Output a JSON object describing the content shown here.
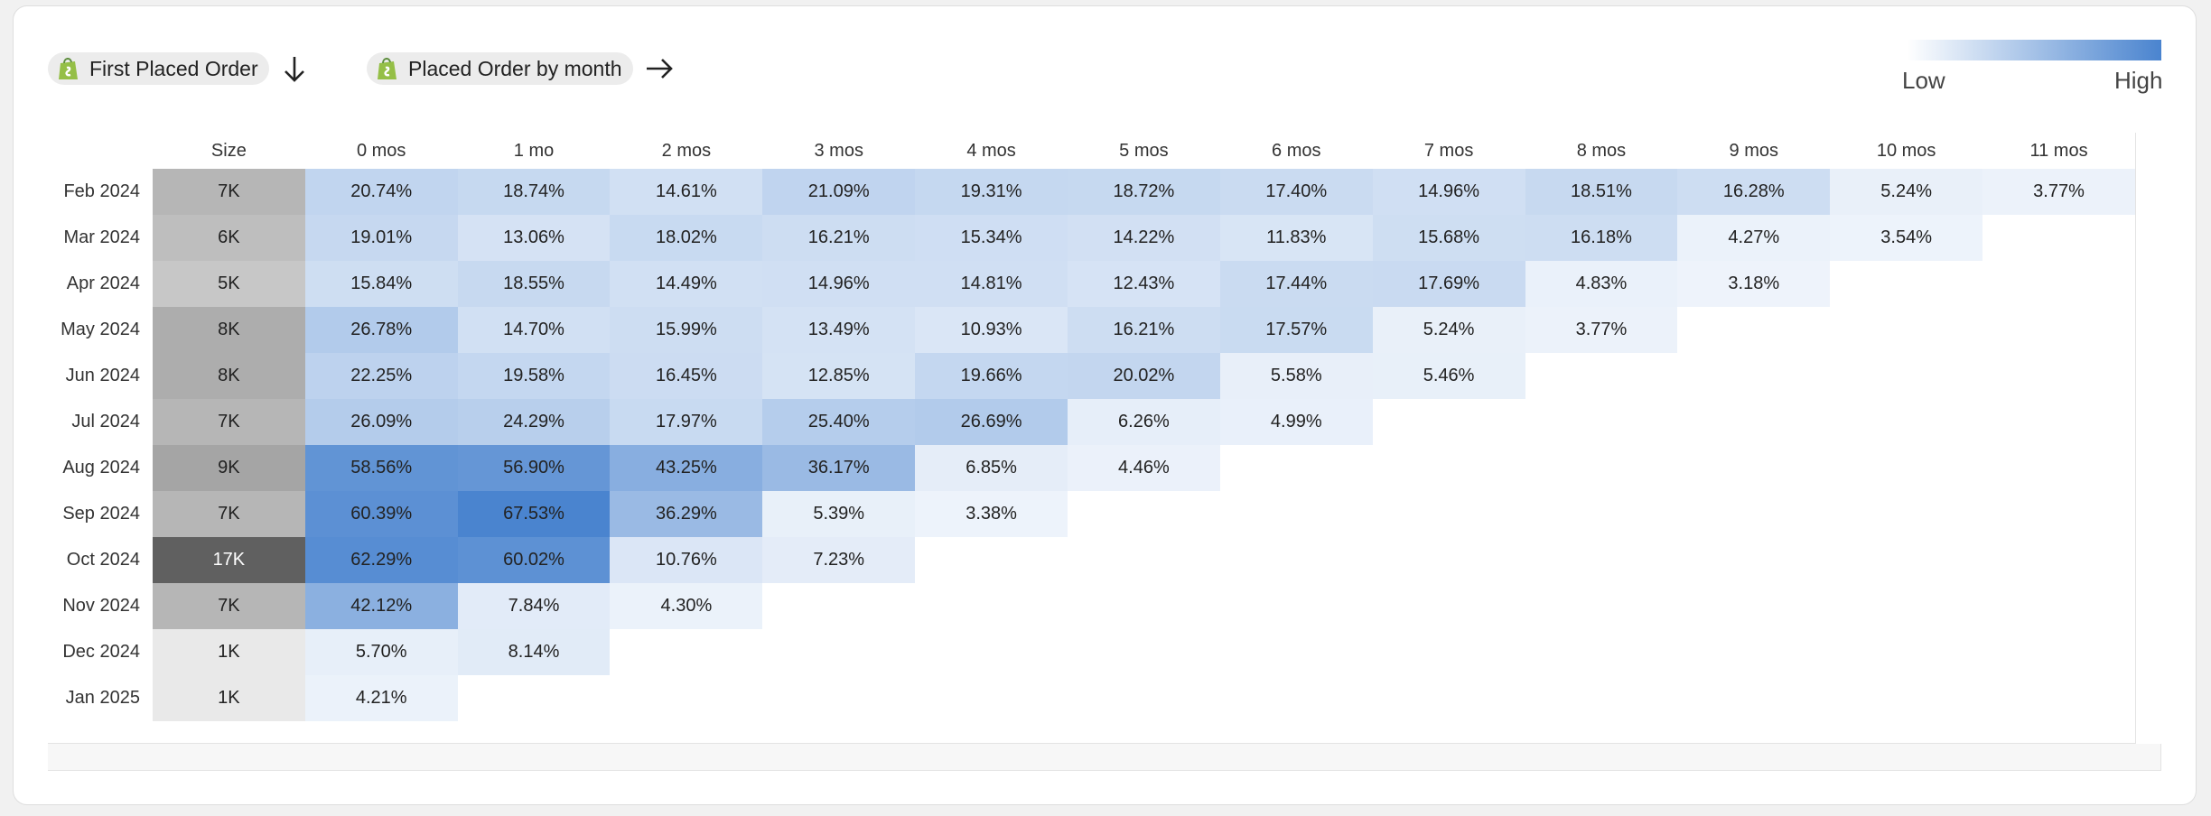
{
  "filters": [
    {
      "label": "First Placed Order"
    },
    {
      "label": "Placed Order by month"
    }
  ],
  "legend": {
    "low": "Low",
    "high": "High"
  },
  "table": {
    "columns": [
      "Size",
      "0 mos",
      "1 mo",
      "2 mos",
      "3 mos",
      "4 mos",
      "5 mos",
      "6 mos",
      "7 mos",
      "8 mos",
      "9 mos",
      "10 mos",
      "11 mos"
    ],
    "rows": [
      {
        "label": "Feb 2024",
        "size": "7K",
        "cells": [
          "20.74%",
          "18.74%",
          "14.61%",
          "21.09%",
          "19.31%",
          "18.72%",
          "17.40%",
          "14.96%",
          "18.51%",
          "16.28%",
          "5.24%",
          "3.77%"
        ]
      },
      {
        "label": "Mar 2024",
        "size": "6K",
        "cells": [
          "19.01%",
          "13.06%",
          "18.02%",
          "16.21%",
          "15.34%",
          "14.22%",
          "11.83%",
          "15.68%",
          "16.18%",
          "4.27%",
          "3.54%"
        ]
      },
      {
        "label": "Apr 2024",
        "size": "5K",
        "cells": [
          "15.84%",
          "18.55%",
          "14.49%",
          "14.96%",
          "14.81%",
          "12.43%",
          "17.44%",
          "17.69%",
          "4.83%",
          "3.18%"
        ]
      },
      {
        "label": "May 2024",
        "size": "8K",
        "cells": [
          "26.78%",
          "14.70%",
          "15.99%",
          "13.49%",
          "10.93%",
          "16.21%",
          "17.57%",
          "5.24%",
          "3.77%"
        ]
      },
      {
        "label": "Jun 2024",
        "size": "8K",
        "cells": [
          "22.25%",
          "19.58%",
          "16.45%",
          "12.85%",
          "19.66%",
          "20.02%",
          "5.58%",
          "5.46%"
        ]
      },
      {
        "label": "Jul 2024",
        "size": "7K",
        "cells": [
          "26.09%",
          "24.29%",
          "17.97%",
          "25.40%",
          "26.69%",
          "6.26%",
          "4.99%"
        ]
      },
      {
        "label": "Aug 2024",
        "size": "9K",
        "cells": [
          "58.56%",
          "56.90%",
          "43.25%",
          "36.17%",
          "6.85%",
          "4.46%"
        ]
      },
      {
        "label": "Sep 2024",
        "size": "7K",
        "cells": [
          "60.39%",
          "67.53%",
          "36.29%",
          "5.39%",
          "3.38%"
        ]
      },
      {
        "label": "Oct 2024",
        "size": "17K",
        "cells": [
          "62.29%",
          "60.02%",
          "10.76%",
          "7.23%"
        ]
      },
      {
        "label": "Nov 2024",
        "size": "7K",
        "cells": [
          "42.12%",
          "7.84%",
          "4.30%"
        ]
      },
      {
        "label": "Dec 2024",
        "size": "1K",
        "cells": [
          "5.70%",
          "8.14%"
        ]
      },
      {
        "label": "Jan 2025",
        "size": "1K",
        "cells": [
          "4.21%"
        ]
      }
    ]
  }
}
